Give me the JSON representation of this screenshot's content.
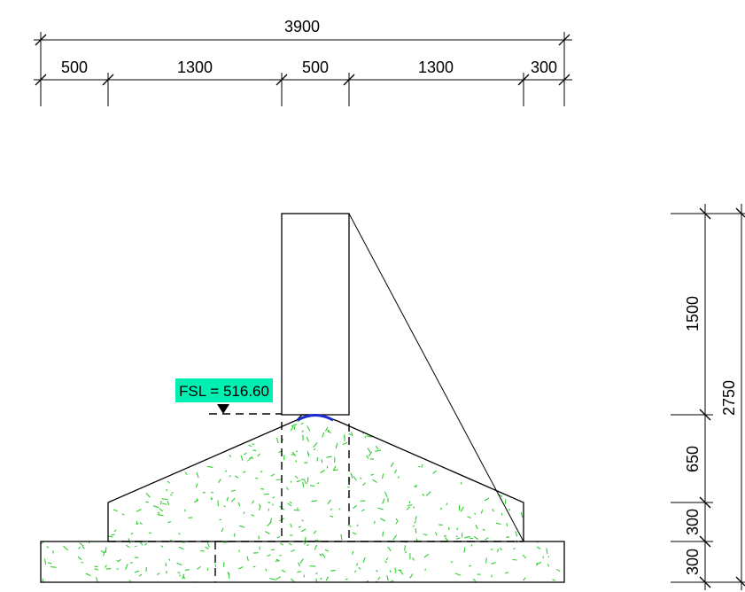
{
  "dimensions_top": {
    "overall": "3900",
    "segments": [
      "500",
      "1300",
      "500",
      "1300",
      "300"
    ]
  },
  "dimensions_side": {
    "overall": "2750",
    "segments": [
      "1500",
      "650",
      "300",
      "300"
    ]
  },
  "fsl": {
    "label": "FSL = 516.60",
    "label_bg": "#00f0b4"
  },
  "colors": {
    "line": "#000000",
    "concrete_speckle": "#2ecc2e",
    "crest_accent": "#1a2bd6"
  }
}
